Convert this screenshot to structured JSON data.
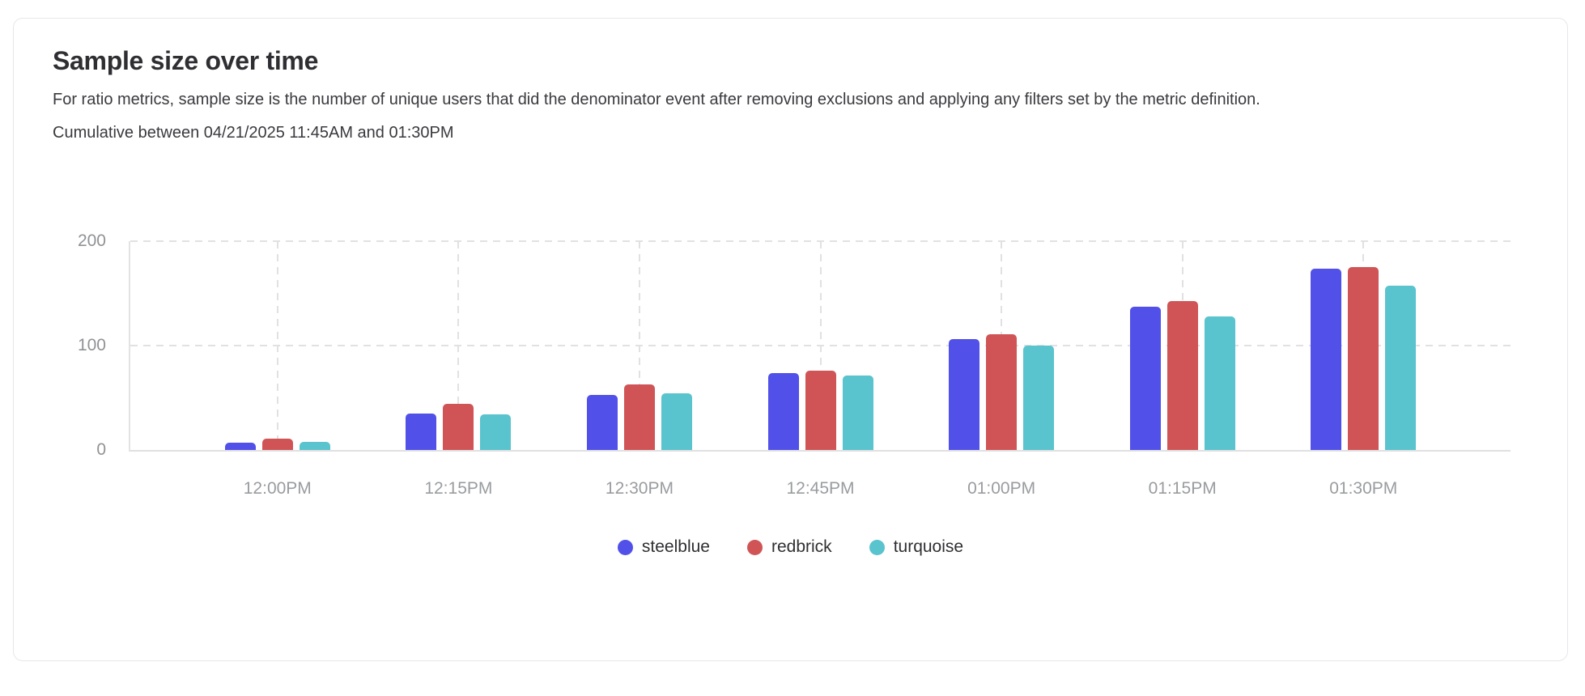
{
  "card": {
    "title": "Sample size over time",
    "description": "For ratio metrics, sample size is the number of unique users that did the denominator event after removing exclusions and applying any filters set by the metric definition.",
    "range_note": "Cumulative between 04/21/2025 11:45AM and 01:30PM"
  },
  "colors": {
    "steelblue": "#5150E8",
    "redbrick": "#D05456",
    "turquoise": "#59C3CE",
    "axis_line": "#e3e3e5",
    "grid_line": "#e1e1e3",
    "tick_label": "#999c9f"
  },
  "chart_data": {
    "type": "bar",
    "title": "Sample size over time",
    "categories": [
      "12:00PM",
      "12:15PM",
      "12:30PM",
      "12:45PM",
      "01:00PM",
      "01:15PM",
      "01:30PM"
    ],
    "series": [
      {
        "name": "steelblue",
        "color": "#5150E8",
        "values": [
          7,
          35,
          53,
          74,
          106,
          137,
          174
        ]
      },
      {
        "name": "redbrick",
        "color": "#D05456",
        "values": [
          11,
          44,
          63,
          76,
          111,
          143,
          175
        ]
      },
      {
        "name": "turquoise",
        "color": "#59C3CE",
        "values": [
          8,
          34,
          54,
          71,
          100,
          128,
          157
        ]
      }
    ],
    "xlabel": "",
    "ylabel": "",
    "ylim": [
      0,
      200
    ],
    "yticks": [
      0,
      100,
      200
    ],
    "grid": true,
    "grid_style": "dashed",
    "legend_position": "bottom"
  }
}
